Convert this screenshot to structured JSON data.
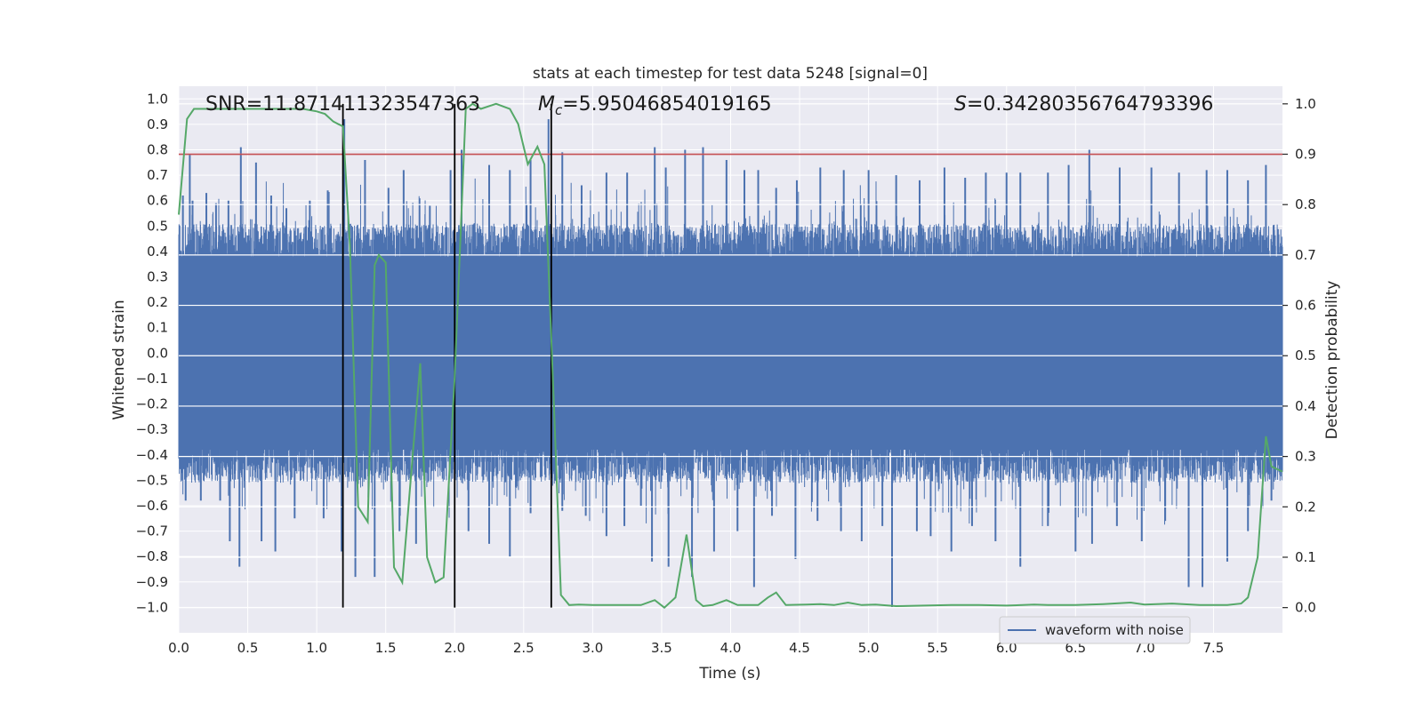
{
  "chart_data": {
    "type": "line",
    "title": "stats at each timestep for test data 5248 [signal=0]",
    "xlabel": "Time (s)",
    "ylabel_left": "Whitened strain",
    "ylabel_right": "Detection probability",
    "xlim": [
      0,
      8
    ],
    "ylim_left": [
      -1.1,
      1.05
    ],
    "ylim_right": [
      -0.05,
      1.035
    ],
    "x_ticks": [
      0.0,
      0.5,
      1.0,
      1.5,
      2.0,
      2.5,
      3.0,
      3.5,
      4.0,
      4.5,
      5.0,
      5.5,
      6.0,
      6.5,
      7.0,
      7.5
    ],
    "x_tick_labels": [
      "0.0",
      "0.5",
      "1.0",
      "1.5",
      "2.0",
      "2.5",
      "3.0",
      "3.5",
      "4.0",
      "4.5",
      "5.0",
      "5.5",
      "6.0",
      "6.5",
      "7.0",
      "7.5"
    ],
    "y_left_ticks": [
      1.0,
      0.9,
      0.8,
      0.7,
      0.6,
      0.5,
      0.4,
      0.3,
      0.2,
      0.1,
      0.0,
      -0.1,
      -0.2,
      -0.3,
      -0.4,
      -0.5,
      -0.6,
      -0.7,
      -0.8,
      -0.9,
      -1.0
    ],
    "y_left_tick_labels": [
      "1.0",
      "0.9",
      "0.8",
      "0.7",
      "0.6",
      "0.5",
      "0.4",
      "0.3",
      "0.2",
      "0.1",
      "0.0",
      "−0.1",
      "−0.2",
      "−0.3",
      "−0.4",
      "−0.5",
      "−0.6",
      "−0.7",
      "−0.8",
      "−0.9",
      "−1.0"
    ],
    "y_right_ticks": [
      1.0,
      0.9,
      0.8,
      0.7,
      0.6,
      0.5,
      0.4,
      0.3,
      0.2,
      0.1,
      0.0
    ],
    "y_right_tick_labels": [
      "1.0",
      "0.9",
      "0.8",
      "0.7",
      "0.6",
      "0.5",
      "0.4",
      "0.3",
      "0.2",
      "0.1",
      "0.0"
    ],
    "annotations": {
      "snr": "SNR=11.871411323547363",
      "mc_symbol": "M",
      "mc_subscript": "c",
      "mc_value": "=5.95046854019165",
      "s_symbol": "S",
      "s_value": "=0.34280356764793396"
    },
    "threshold_right": 0.9,
    "vertical_markers": [
      1.19,
      2.0,
      2.7
    ],
    "waveform": {
      "name": "waveform with noise",
      "color": "#4c72b0",
      "body_range": [
        -0.38,
        0.38
      ],
      "peaks": [
        [
          0.03,
          0.62
        ],
        [
          0.08,
          0.78
        ],
        [
          0.1,
          0.6
        ],
        [
          0.2,
          0.63
        ],
        [
          0.27,
          0.59
        ],
        [
          0.36,
          0.6
        ],
        [
          0.45,
          0.81
        ],
        [
          0.56,
          0.75
        ],
        [
          0.67,
          0.62
        ],
        [
          0.78,
          0.57
        ],
        [
          0.95,
          0.6
        ],
        [
          1.08,
          0.64
        ],
        [
          1.2,
          0.92
        ],
        [
          1.35,
          0.76
        ],
        [
          1.52,
          0.65
        ],
        [
          1.63,
          0.72
        ],
        [
          1.82,
          0.58
        ],
        [
          1.97,
          0.72
        ],
        [
          2.05,
          0.8
        ],
        [
          2.25,
          0.74
        ],
        [
          2.4,
          0.72
        ],
        [
          2.55,
          0.76
        ],
        [
          2.68,
          0.92
        ],
        [
          2.78,
          0.79
        ],
        [
          2.92,
          0.66
        ],
        [
          3.1,
          0.71
        ],
        [
          3.25,
          0.71
        ],
        [
          3.45,
          0.81
        ],
        [
          3.53,
          0.73
        ],
        [
          3.67,
          0.8
        ],
        [
          3.8,
          0.81
        ],
        [
          3.97,
          0.76
        ],
        [
          4.1,
          0.72
        ],
        [
          4.2,
          0.72
        ],
        [
          4.33,
          0.65
        ],
        [
          4.48,
          0.68
        ],
        [
          4.65,
          0.73
        ],
        [
          4.82,
          0.72
        ],
        [
          5.0,
          0.72
        ],
        [
          5.2,
          0.7
        ],
        [
          5.37,
          0.68
        ],
        [
          5.55,
          0.73
        ],
        [
          5.7,
          0.69
        ],
        [
          5.85,
          0.71
        ],
        [
          6.0,
          0.71
        ],
        [
          6.1,
          0.71
        ],
        [
          6.3,
          0.71
        ],
        [
          6.45,
          0.74
        ],
        [
          6.6,
          0.8
        ],
        [
          6.82,
          0.73
        ],
        [
          7.05,
          0.73
        ],
        [
          7.25,
          0.71
        ],
        [
          7.45,
          0.72
        ],
        [
          7.6,
          0.72
        ],
        [
          7.75,
          0.68
        ],
        [
          7.88,
          0.74
        ]
      ],
      "troughs": [
        [
          0.05,
          -0.58
        ],
        [
          0.16,
          -0.58
        ],
        [
          0.3,
          -0.58
        ],
        [
          0.37,
          -0.74
        ],
        [
          0.44,
          -0.84
        ],
        [
          0.6,
          -0.74
        ],
        [
          0.7,
          -0.78
        ],
        [
          0.84,
          -0.65
        ],
        [
          1.05,
          -0.65
        ],
        [
          1.18,
          -0.78
        ],
        [
          1.28,
          -0.88
        ],
        [
          1.42,
          -0.88
        ],
        [
          1.6,
          -0.7
        ],
        [
          1.72,
          -0.75
        ],
        [
          2.1,
          -0.7
        ],
        [
          2.25,
          -0.75
        ],
        [
          2.4,
          -0.8
        ],
        [
          2.55,
          -0.63
        ],
        [
          2.78,
          -0.62
        ],
        [
          2.95,
          -0.64
        ],
        [
          3.1,
          -0.72
        ],
        [
          3.23,
          -0.68
        ],
        [
          3.35,
          -0.6
        ],
        [
          3.43,
          -0.82
        ],
        [
          3.55,
          -0.84
        ],
        [
          3.72,
          -0.88
        ],
        [
          3.88,
          -0.78
        ],
        [
          4.05,
          -0.7
        ],
        [
          4.17,
          -0.92
        ],
        [
          4.3,
          -0.64
        ],
        [
          4.47,
          -0.81
        ],
        [
          4.63,
          -0.66
        ],
        [
          4.8,
          -0.7
        ],
        [
          4.95,
          -0.74
        ],
        [
          5.1,
          -0.68
        ],
        [
          5.17,
          -1.0
        ],
        [
          5.35,
          -0.7
        ],
        [
          5.45,
          -0.72
        ],
        [
          5.6,
          -0.78
        ],
        [
          5.75,
          -0.68
        ],
        [
          5.92,
          -0.74
        ],
        [
          6.1,
          -0.84
        ],
        [
          6.3,
          -0.68
        ],
        [
          6.5,
          -0.78
        ],
        [
          6.62,
          -0.75
        ],
        [
          6.8,
          -0.68
        ],
        [
          6.98,
          -0.74
        ],
        [
          7.15,
          -0.66
        ],
        [
          7.32,
          -0.92
        ],
        [
          7.42,
          -0.92
        ],
        [
          7.6,
          -0.82
        ],
        [
          7.75,
          -0.7
        ],
        [
          7.92,
          -0.58
        ]
      ]
    },
    "probability": {
      "color": "#55a868",
      "x": [
        0.0,
        0.06,
        0.11,
        0.2,
        0.3,
        0.5,
        0.7,
        0.9,
        1.0,
        1.06,
        1.12,
        1.19,
        1.24,
        1.3,
        1.37,
        1.42,
        1.45,
        1.5,
        1.56,
        1.62,
        1.68,
        1.75,
        1.8,
        1.86,
        1.92,
        2.0,
        2.08,
        2.13,
        2.19,
        2.3,
        2.4,
        2.46,
        2.53,
        2.6,
        2.65,
        2.72,
        2.77,
        2.83,
        2.9,
        3.0,
        3.2,
        3.35,
        3.45,
        3.52,
        3.6,
        3.68,
        3.75,
        3.8,
        3.87,
        3.97,
        4.05,
        4.2,
        4.27,
        4.33,
        4.4,
        4.55,
        4.65,
        4.75,
        4.85,
        4.95,
        5.05,
        5.2,
        5.4,
        5.6,
        5.8,
        6.0,
        6.2,
        6.3,
        6.5,
        6.7,
        6.9,
        7.0,
        7.2,
        7.4,
        7.6,
        7.7,
        7.75,
        7.82,
        7.88,
        7.92,
        8.0
      ],
      "y": [
        0.78,
        0.97,
        0.99,
        0.99,
        0.99,
        0.99,
        0.99,
        0.99,
        0.985,
        0.98,
        0.965,
        0.955,
        0.72,
        0.2,
        0.17,
        0.68,
        0.7,
        0.685,
        0.08,
        0.05,
        0.25,
        0.485,
        0.1,
        0.05,
        0.06,
        0.46,
        0.99,
        1.0,
        0.99,
        1.0,
        0.99,
        0.96,
        0.88,
        0.915,
        0.88,
        0.4,
        0.025,
        0.005,
        0.006,
        0.005,
        0.005,
        0.005,
        0.015,
        0.0,
        0.02,
        0.145,
        0.015,
        0.003,
        0.005,
        0.015,
        0.005,
        0.005,
        0.02,
        0.03,
        0.005,
        0.006,
        0.007,
        0.005,
        0.01,
        0.005,
        0.006,
        0.003,
        0.004,
        0.005,
        0.005,
        0.004,
        0.006,
        0.005,
        0.005,
        0.007,
        0.01,
        0.006,
        0.008,
        0.005,
        0.005,
        0.008,
        0.02,
        0.1,
        0.34,
        0.28,
        0.27
      ]
    },
    "legend": {
      "label": "waveform with noise",
      "location": "lower-right"
    }
  }
}
